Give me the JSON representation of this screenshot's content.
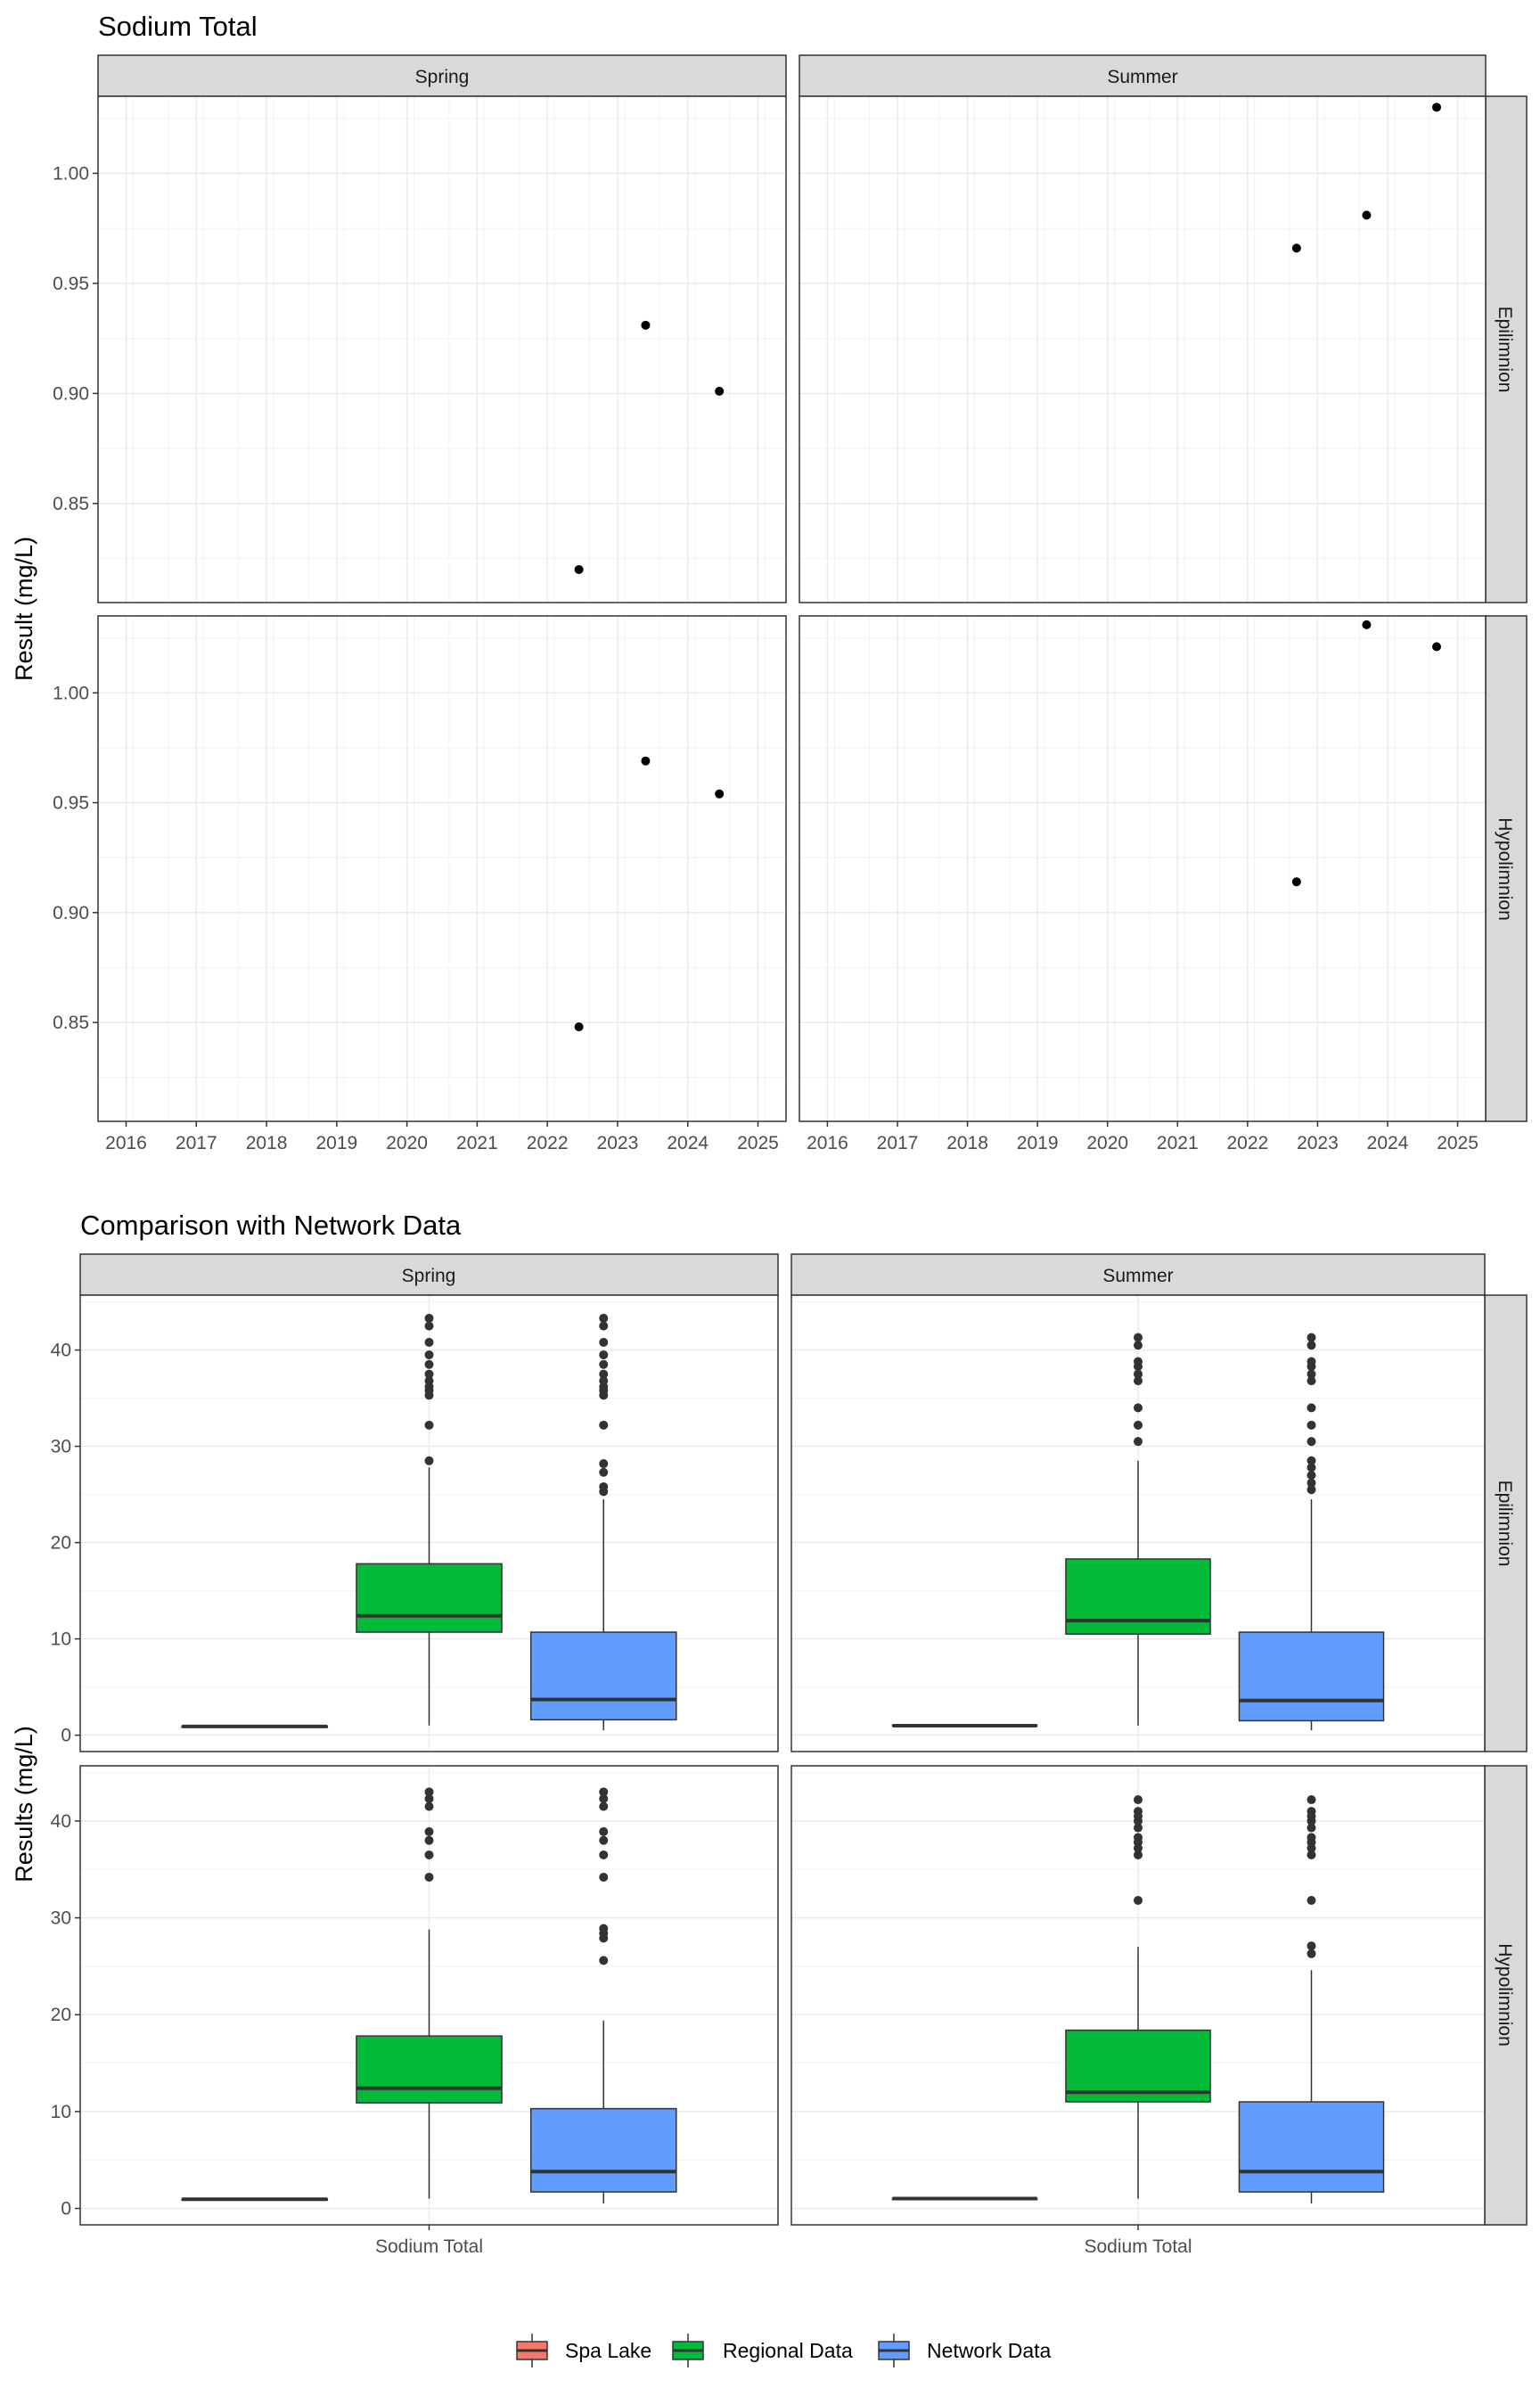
{
  "chart_data": [
    {
      "type": "scatter",
      "title": "Sodium Total",
      "xlabel": "",
      "ylabel": "Result (mg/L)",
      "columns": [
        "Spring",
        "Summer"
      ],
      "rows": [
        "Epilimnion",
        "Hypolimnion"
      ],
      "xlim": [
        2015.6,
        2025.4
      ],
      "ylim": [
        0.805,
        1.035
      ],
      "x_ticks": [
        2016,
        2017,
        2018,
        2019,
        2020,
        2021,
        2022,
        2023,
        2024,
        2025
      ],
      "y_ticks": [
        0.85,
        0.9,
        0.95,
        1.0
      ],
      "y_tick_labels": [
        "0.85",
        "0.90",
        "0.95",
        "1.00"
      ],
      "grid": true,
      "point_color": "#000000",
      "panels": [
        {
          "col": "Spring",
          "row": "Epilimnion",
          "points": [
            {
              "x": 2022.45,
              "y": 0.82
            },
            {
              "x": 2023.4,
              "y": 0.931
            },
            {
              "x": 2024.45,
              "y": 0.901
            }
          ]
        },
        {
          "col": "Summer",
          "row": "Epilimnion",
          "points": [
            {
              "x": 2022.7,
              "y": 0.966
            },
            {
              "x": 2023.7,
              "y": 0.981
            },
            {
              "x": 2024.7,
              "y": 1.03
            }
          ]
        },
        {
          "col": "Spring",
          "row": "Hypolimnion",
          "points": [
            {
              "x": 2022.45,
              "y": 0.848
            },
            {
              "x": 2023.4,
              "y": 0.969
            },
            {
              "x": 2024.45,
              "y": 0.954
            }
          ]
        },
        {
          "col": "Summer",
          "row": "Hypolimnion",
          "points": [
            {
              "x": 2022.7,
              "y": 0.914
            },
            {
              "x": 2023.7,
              "y": 1.031
            },
            {
              "x": 2024.7,
              "y": 1.021
            }
          ]
        }
      ]
    },
    {
      "type": "box",
      "title": "Comparison with Network Data",
      "xlabel": "",
      "ylabel": "Results (mg/L)",
      "columns": [
        "Spring",
        "Summer"
      ],
      "rows": [
        "Epilimnion",
        "Hypolimnion"
      ],
      "category": "Sodium Total",
      "ylim": [
        -1.7,
        45.7
      ],
      "y_ticks": [
        0,
        10,
        20,
        30,
        40
      ],
      "grid": true,
      "legend_position": "bottom",
      "series": [
        {
          "name": "Spa Lake",
          "color": "#F8766D"
        },
        {
          "name": "Regional Data",
          "color": "#00BA38"
        },
        {
          "name": "Network Data",
          "color": "#619CFF"
        }
      ],
      "panels": [
        {
          "col": "Spring",
          "row": "Epilimnion",
          "boxes": [
            {
              "series": "Spa Lake",
              "min": 0.82,
              "q1": 0.82,
              "median": 0.9,
              "q3": 0.93,
              "max": 0.93,
              "outliers": []
            },
            {
              "series": "Regional Data",
              "min": 1.0,
              "q1": 10.7,
              "median": 12.4,
              "q3": 17.8,
              "max": 27.8,
              "outliers": [
                28.5,
                32.2,
                35.3,
                35.8,
                36.2,
                36.8,
                37.5,
                38.5,
                39.5,
                40.8,
                42.5,
                43.3
              ]
            },
            {
              "series": "Network Data",
              "min": 0.5,
              "q1": 1.6,
              "median": 3.7,
              "q3": 10.7,
              "max": 24.5,
              "outliers": [
                25.3,
                25.8,
                27.3,
                28.2,
                32.2,
                35.3,
                35.8,
                36.2,
                36.8,
                37.5,
                38.5,
                39.5,
                40.8,
                42.5,
                43.3
              ]
            }
          ]
        },
        {
          "col": "Summer",
          "row": "Epilimnion",
          "boxes": [
            {
              "series": "Spa Lake",
              "min": 0.97,
              "q1": 0.97,
              "median": 0.98,
              "q3": 1.03,
              "max": 1.03,
              "outliers": []
            },
            {
              "series": "Regional Data",
              "min": 1.0,
              "q1": 10.5,
              "median": 11.9,
              "q3": 18.3,
              "max": 28.5,
              "outliers": [
                30.5,
                32.2,
                34.0,
                36.8,
                37.5,
                38.3,
                38.8,
                40.5,
                41.3
              ]
            },
            {
              "series": "Network Data",
              "min": 0.5,
              "q1": 1.5,
              "median": 3.6,
              "q3": 10.7,
              "max": 24.5,
              "outliers": [
                25.5,
                26.2,
                27.0,
                27.8,
                28.5,
                30.5,
                32.2,
                34.0,
                36.8,
                37.5,
                38.3,
                38.8,
                40.5,
                41.3
              ]
            }
          ]
        },
        {
          "col": "Spring",
          "row": "Hypolimnion",
          "boxes": [
            {
              "series": "Spa Lake",
              "min": 0.85,
              "q1": 0.85,
              "median": 0.95,
              "q3": 0.97,
              "max": 0.97,
              "outliers": []
            },
            {
              "series": "Regional Data",
              "min": 1.0,
              "q1": 10.9,
              "median": 12.4,
              "q3": 17.8,
              "max": 28.8,
              "outliers": [
                34.2,
                36.5,
                38.0,
                38.9,
                41.5,
                42.3,
                43.0
              ]
            },
            {
              "series": "Network Data",
              "min": 0.5,
              "q1": 1.7,
              "median": 3.8,
              "q3": 10.3,
              "max": 19.4,
              "outliers": [
                25.6,
                27.9,
                28.4,
                28.9,
                34.2,
                36.5,
                38.0,
                38.9,
                41.5,
                42.3,
                43.0
              ]
            }
          ]
        },
        {
          "col": "Summer",
          "row": "Hypolimnion",
          "boxes": [
            {
              "series": "Spa Lake",
              "min": 0.91,
              "q1": 0.91,
              "median": 1.02,
              "q3": 1.03,
              "max": 1.03,
              "outliers": []
            },
            {
              "series": "Regional Data",
              "min": 1.0,
              "q1": 11.0,
              "median": 12.0,
              "q3": 18.4,
              "max": 27.0,
              "outliers": [
                31.8,
                36.5,
                37.2,
                37.8,
                38.3,
                39.3,
                40.0,
                40.5,
                41.0,
                42.2
              ]
            },
            {
              "series": "Network Data",
              "min": 0.5,
              "q1": 1.7,
              "median": 3.8,
              "q3": 11.0,
              "max": 24.6,
              "outliers": [
                26.3,
                27.1,
                31.8,
                36.5,
                37.2,
                37.8,
                38.3,
                39.3,
                40.0,
                40.5,
                41.0,
                42.2
              ]
            }
          ]
        }
      ]
    }
  ]
}
